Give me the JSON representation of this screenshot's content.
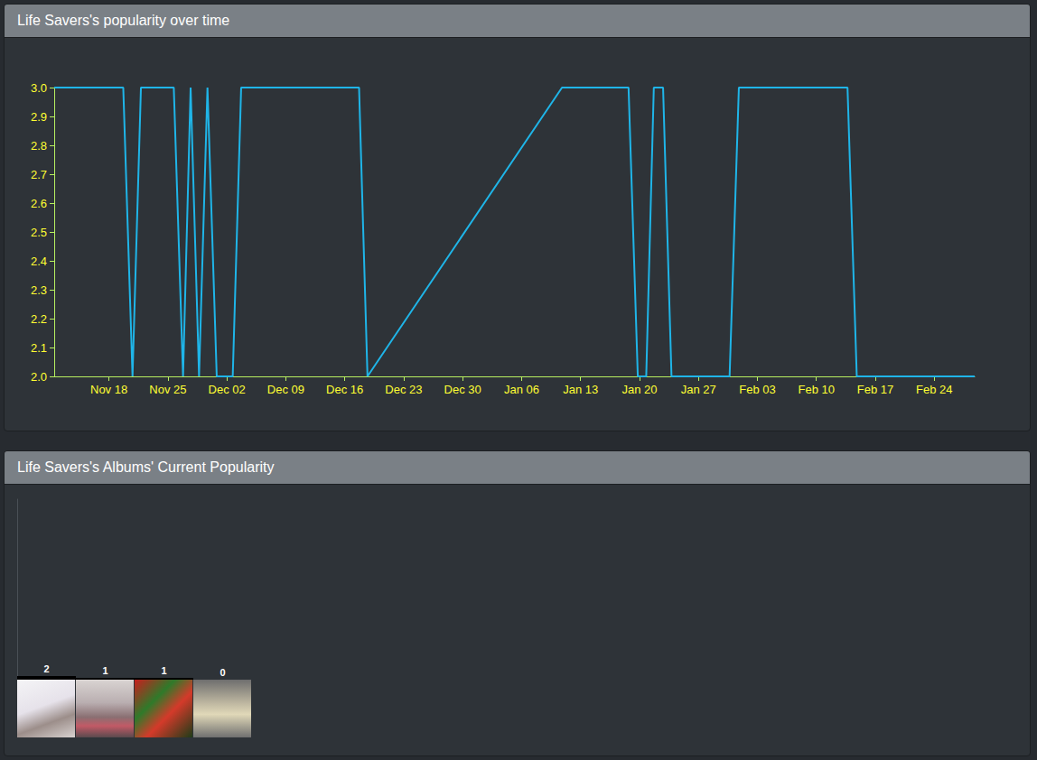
{
  "chart_data": [
    {
      "type": "line",
      "title": "Life Savers's popularity over time",
      "x": [
        0.5,
        8.7,
        9.8,
        10.8,
        14.7,
        15.8,
        16.7,
        17.7,
        18.7,
        19.8,
        21.7,
        22.7,
        36.7,
        37.7,
        60.8,
        68.7,
        69.8,
        70.8,
        71.7,
        72.8,
        73.8,
        80.7,
        81.8,
        94.7,
        95.8,
        109.8
      ],
      "values": [
        3,
        3,
        2,
        3,
        3,
        2,
        3,
        2,
        3,
        2,
        2,
        3,
        3,
        2,
        3,
        3,
        2,
        2,
        3,
        3,
        2,
        2,
        3,
        3,
        2,
        2
      ],
      "color": "#1fb5e8",
      "xlim": [
        0.5,
        109.8
      ],
      "xticks": [
        {
          "value": 7,
          "label": "Nov 18"
        },
        {
          "value": 14,
          "label": "Nov 25"
        },
        {
          "value": 21,
          "label": "Dec 02"
        },
        {
          "value": 28,
          "label": "Dec 09"
        },
        {
          "value": 35,
          "label": "Dec 16"
        },
        {
          "value": 42,
          "label": "Dec 23"
        },
        {
          "value": 49,
          "label": "Dec 30"
        },
        {
          "value": 56,
          "label": "Jan 06"
        },
        {
          "value": 63,
          "label": "Jan 13"
        },
        {
          "value": 70,
          "label": "Jan 20"
        },
        {
          "value": 77,
          "label": "Jan 27"
        },
        {
          "value": 84,
          "label": "Feb 03"
        },
        {
          "value": 91,
          "label": "Feb 10"
        },
        {
          "value": 98,
          "label": "Feb 17"
        },
        {
          "value": 105,
          "label": "Feb 24"
        }
      ],
      "ylim": [
        2,
        3
      ],
      "yticks": [
        {
          "value": 2,
          "label": "2.0"
        },
        2.1,
        2.2,
        2.3,
        2.4,
        2.5,
        2.6,
        2.7,
        2.8,
        2.9,
        {
          "value": 3,
          "label": "3.0"
        }
      ],
      "grid": false
    },
    {
      "type": "bar",
      "title": "Life Savers's Albums' Current Popularity",
      "categories": [
        null,
        null,
        null,
        null
      ],
      "values": [
        2,
        1,
        1,
        0
      ],
      "color": "#000000",
      "ylim": [
        0,
        100
      ],
      "data_labels": true,
      "tick_labels": false
    }
  ]
}
